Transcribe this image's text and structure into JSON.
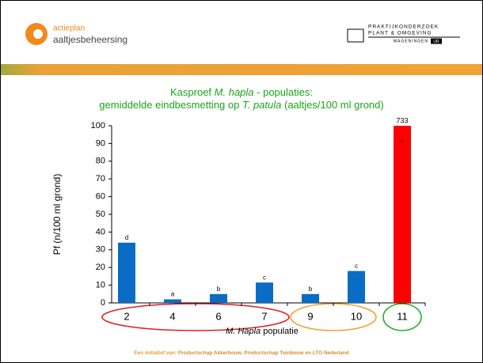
{
  "header": {
    "logo_left": [
      "actieplan",
      "aaltjesbeheersing"
    ],
    "logo_right": [
      "PRAKTIJKONDERZOEK",
      "PLANT & OMGEVING",
      "WAGENINGEN",
      "UR"
    ]
  },
  "chart_data": {
    "type": "bar",
    "title": [
      [
        "Kasproef ",
        "M. hapla",
        " - populaties:"
      ],
      [
        "gemiddelde eindbesmetting op ",
        "T. patula",
        " (aaltjes/100 ml grond)"
      ]
    ],
    "ylabel": "Pf (n/100 ml grond)",
    "xlabel": [
      "M. Hapla",
      " populatie"
    ],
    "categories": [
      "2",
      "4",
      "6",
      "7",
      "9",
      "10",
      "11"
    ],
    "values": [
      34,
      2,
      5,
      11.5,
      5,
      18,
      733
    ],
    "value_labels": [
      null,
      null,
      null,
      null,
      null,
      null,
      "733"
    ],
    "letters": [
      "d",
      "a",
      "b",
      "c",
      "b",
      "c",
      "e"
    ],
    "colors": [
      "#0a6cc4",
      "#0a6cc4",
      "#0a6cc4",
      "#0a6cc4",
      "#0a6cc4",
      "#0a6cc4",
      "#ff0000"
    ],
    "ylim": [
      0,
      100
    ],
    "yticks": [
      0,
      10,
      20,
      30,
      40,
      50,
      60,
      70,
      80,
      90,
      100
    ]
  },
  "footer": [
    "Een initiatief van: ",
    "Productschap Akkerbouw, Productschap Tuinbouw en LTO Nederland"
  ]
}
